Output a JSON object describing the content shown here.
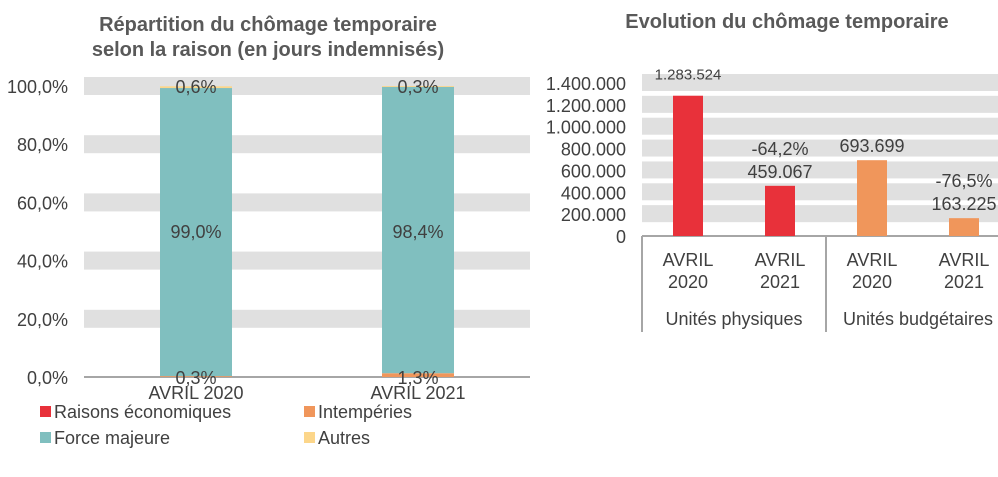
{
  "chart_data": [
    {
      "type": "bar",
      "stacked": true,
      "percent": true,
      "title": [
        "Répartition du chômage temporaire",
        "selon la raison (en jours indemnisés)"
      ],
      "categories": [
        "AVRIL 2020",
        "AVRIL 2021"
      ],
      "yticks": [
        "0,0%",
        "20,0%",
        "40,0%",
        "60,0%",
        "80,0%",
        "100,0%"
      ],
      "ylim": [
        0,
        100
      ],
      "grid": true,
      "legend_position": "bottom",
      "series": [
        {
          "name": "Raisons économiques",
          "color": "#E8313A",
          "values": [
            0,
            0
          ],
          "labels": [
            "",
            ""
          ]
        },
        {
          "name": "Intempéries",
          "color": "#F0965B",
          "values": [
            0.3,
            1.3
          ],
          "labels": [
            "0,3%",
            "1,3%"
          ]
        },
        {
          "name": "Force majeure",
          "color": "#80BFBF",
          "values": [
            99.0,
            98.4
          ],
          "labels": [
            "99,0%",
            "98,4%"
          ]
        },
        {
          "name": "Autres",
          "color": "#FCD68A",
          "values": [
            0.6,
            0.3
          ],
          "labels": [
            "0,6%",
            "0,3%"
          ]
        }
      ]
    },
    {
      "type": "bar",
      "title": "Evolution du chômage temporaire",
      "yticks": [
        "0",
        "200.000",
        "400.000",
        "600.000",
        "800.000",
        "1.000.000",
        "1.200.000",
        "1.400.000"
      ],
      "ylim": [
        0,
        1400000
      ],
      "grid": true,
      "groups": [
        {
          "name": "Unités physiques",
          "color": "#E8313A",
          "categories": [
            [
              "AVRIL",
              "2020"
            ],
            [
              "AVRIL",
              "2021"
            ]
          ],
          "values": [
            1283524,
            459067
          ],
          "labels": [
            "1.283.524",
            "459.067"
          ],
          "changes": [
            "",
            "-64,2%"
          ]
        },
        {
          "name": "Unités budgétaires",
          "color": "#F0965B",
          "categories": [
            [
              "AVRIL",
              "2020"
            ],
            [
              "AVRIL",
              "2021"
            ]
          ],
          "values": [
            693699,
            163225
          ],
          "labels": [
            "693.699",
            "163.225"
          ],
          "changes": [
            "",
            "-76,5%"
          ]
        }
      ]
    }
  ]
}
